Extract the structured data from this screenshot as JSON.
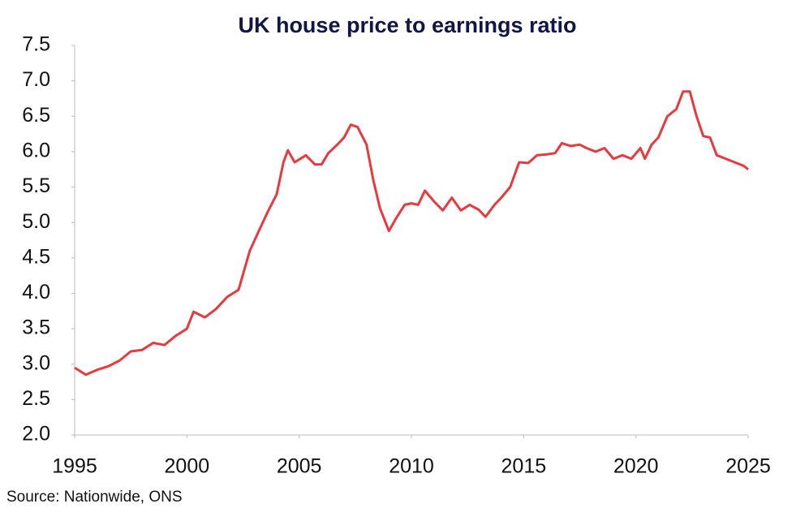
{
  "chart_data": {
    "type": "line",
    "title": "UK house price to earnings ratio",
    "source": "Source: Nationwide, ONS",
    "x": [
      1995.0,
      1995.5,
      1996.0,
      1996.5,
      1997.0,
      1997.5,
      1998.0,
      1998.5,
      1999.0,
      1999.5,
      2000.0,
      2000.3,
      2000.8,
      2001.3,
      2001.8,
      2002.3,
      2002.8,
      2003.2,
      2003.6,
      2004.0,
      2004.3,
      2004.5,
      2004.8,
      2005.3,
      2005.7,
      2006.0,
      2006.3,
      2006.7,
      2007.0,
      2007.3,
      2007.6,
      2008.0,
      2008.3,
      2008.6,
      2009.0,
      2009.3,
      2009.7,
      2010.0,
      2010.3,
      2010.6,
      2011.0,
      2011.4,
      2011.8,
      2012.2,
      2012.6,
      2013.0,
      2013.3,
      2013.7,
      2014.0,
      2014.4,
      2014.8,
      2015.2,
      2015.6,
      2016.0,
      2016.4,
      2016.7,
      2017.1,
      2017.5,
      2017.8,
      2018.2,
      2018.6,
      2019.0,
      2019.4,
      2019.8,
      2020.2,
      2020.4,
      2020.7,
      2021.0,
      2021.4,
      2021.8,
      2022.1,
      2022.4,
      2022.7,
      2023.0,
      2023.3,
      2023.6,
      2024.0,
      2024.4,
      2024.8,
      2025.0
    ],
    "series": [
      {
        "color": "#e8393e",
        "values": [
          2.95,
          2.85,
          2.92,
          2.97,
          3.05,
          3.18,
          3.2,
          3.3,
          3.27,
          3.4,
          3.5,
          3.74,
          3.66,
          3.78,
          3.95,
          4.05,
          4.6,
          4.88,
          5.15,
          5.4,
          5.85,
          6.02,
          5.85,
          5.95,
          5.82,
          5.82,
          5.98,
          6.1,
          6.2,
          6.38,
          6.35,
          6.1,
          5.6,
          5.2,
          4.88,
          5.05,
          5.25,
          5.27,
          5.25,
          5.45,
          5.3,
          5.17,
          5.35,
          5.17,
          5.25,
          5.18,
          5.08,
          5.25,
          5.35,
          5.5,
          5.85,
          5.84,
          5.95,
          5.96,
          5.98,
          6.12,
          6.08,
          6.1,
          6.05,
          6.0,
          6.05,
          5.9,
          5.95,
          5.9,
          6.05,
          5.9,
          6.1,
          6.2,
          6.5,
          6.6,
          6.85,
          6.85,
          6.5,
          6.22,
          6.2,
          5.95,
          5.9,
          5.85,
          5.8,
          5.75
        ]
      }
    ],
    "xlim": [
      1995,
      2025
    ],
    "xticks": [
      1995,
      2000,
      2005,
      2010,
      2015,
      2020,
      2025
    ],
    "ylim": [
      2,
      7.5
    ],
    "yticks": [
      {
        "value": 2,
        "label": "2.0"
      },
      2.5,
      {
        "value": 3,
        "label": "3.0"
      },
      3.5,
      {
        "value": 4,
        "label": "4.0"
      },
      4.5,
      {
        "value": 5,
        "label": "5.0"
      },
      5.5,
      {
        "value": 6,
        "label": "6.0"
      },
      6.5,
      {
        "value": 7,
        "label": "7.0"
      },
      7.5
    ]
  }
}
